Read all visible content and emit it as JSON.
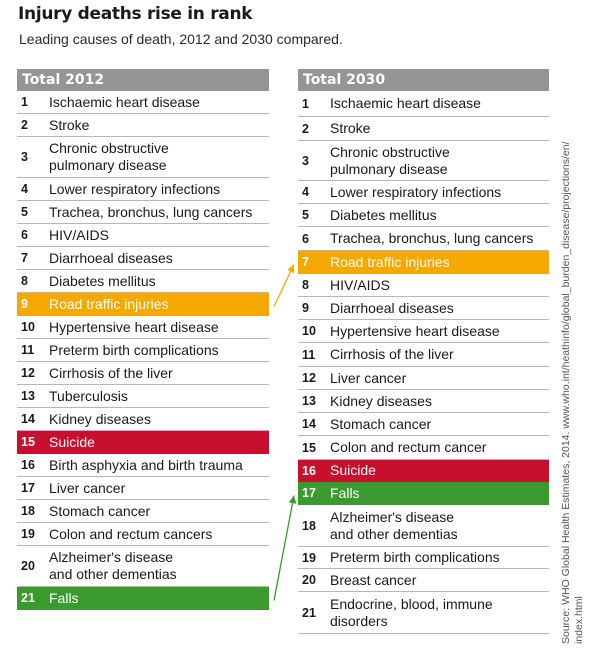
{
  "title": "Injury deaths rise in rank",
  "subtitle": "Leading causes of death, 2012 and 2030 compared.",
  "colors": {
    "header": "#959595",
    "road_traffic": "#f5a800",
    "suicide": "#c8102e",
    "falls": "#3a9a2e"
  },
  "source": {
    "line1": "Source:  WHO Global Health Estimates, 2014. www.who.int/heathinfo/global_burden_disease/projections/en/",
    "line2": "index.html"
  },
  "chart_data": {
    "type": "table",
    "tables": [
      {
        "header": "Total 2012",
        "rows": [
          {
            "rank": "1",
            "label": "Ischaemic heart disease"
          },
          {
            "rank": "2",
            "label": "Stroke"
          },
          {
            "rank": "3",
            "label": "Chronic obstructive pulmonary disease",
            "lines": [
              "Chronic obstructive",
              "pulmonary disease"
            ]
          },
          {
            "rank": "4",
            "label": "Lower respiratory infections"
          },
          {
            "rank": "5",
            "label": "Trachea, bronchus, lung cancers"
          },
          {
            "rank": "6",
            "label": "HIV/AIDS"
          },
          {
            "rank": "7",
            "label": "Diarrhoeal diseases"
          },
          {
            "rank": "8",
            "label": "Diabetes mellitus"
          },
          {
            "rank": "9",
            "label": "Road traffic injuries",
            "highlight": "road_traffic"
          },
          {
            "rank": "10",
            "label": "Hypertensive heart disease"
          },
          {
            "rank": "11",
            "label": "Preterm birth complications"
          },
          {
            "rank": "12",
            "label": "Cirrhosis of the liver"
          },
          {
            "rank": "13",
            "label": "Tuberculosis"
          },
          {
            "rank": "14",
            "label": "Kidney diseases"
          },
          {
            "rank": "15",
            "label": "Suicide",
            "highlight": "suicide"
          },
          {
            "rank": "16",
            "label": "Birth asphyxia and birth trauma"
          },
          {
            "rank": "17",
            "label": "Liver cancer"
          },
          {
            "rank": "18",
            "label": "Stomach cancer"
          },
          {
            "rank": "19",
            "label": "Colon and rectum cancers"
          },
          {
            "rank": "20",
            "label": "Alzheimer's disease and other dementias",
            "lines": [
              "Alzheimer's disease",
              "and other dementias"
            ]
          },
          {
            "rank": "21",
            "label": "Falls",
            "highlight": "falls"
          }
        ]
      },
      {
        "header": "Total 2030",
        "rows": [
          {
            "rank": "1",
            "label": "Ischaemic heart disease"
          },
          {
            "rank": "2",
            "label": "Stroke"
          },
          {
            "rank": "3",
            "label": "Chronic obstructive pulmonary disease",
            "lines": [
              "Chronic obstructive",
              "pulmonary disease"
            ]
          },
          {
            "rank": "4",
            "label": "Lower respiratory infections"
          },
          {
            "rank": "5",
            "label": "Diabetes mellitus"
          },
          {
            "rank": "6",
            "label": "Trachea, bronchus, lung cancers"
          },
          {
            "rank": "7",
            "label": "Road traffic injuries",
            "highlight": "road_traffic"
          },
          {
            "rank": "8",
            "label": "HIV/AIDS"
          },
          {
            "rank": "9",
            "label": "Diarrhoeal diseases"
          },
          {
            "rank": "10",
            "label": "Hypertensive heart disease"
          },
          {
            "rank": "11",
            "label": "Cirrhosis of the liver"
          },
          {
            "rank": "12",
            "label": "Liver cancer"
          },
          {
            "rank": "13",
            "label": "Kidney diseases"
          },
          {
            "rank": "14",
            "label": "Stomach cancer"
          },
          {
            "rank": "15",
            "label": "Colon and rectum cancer"
          },
          {
            "rank": "16",
            "label": "Suicide",
            "highlight": "suicide"
          },
          {
            "rank": "17",
            "label": "Falls",
            "highlight": "falls"
          },
          {
            "rank": "18",
            "label": "Alzheimer's disease and other dementias",
            "lines": [
              "Alzheimer's disease",
              "and other dementias"
            ]
          },
          {
            "rank": "19",
            "label": "Preterm birth complications"
          },
          {
            "rank": "20",
            "label": "Breast cancer"
          },
          {
            "rank": "21",
            "label": "Endocrine, blood, immune disorders",
            "lines": [
              "Endocrine, blood, immune",
              "disorders"
            ]
          }
        ]
      }
    ],
    "arrows": [
      {
        "from": "Total 2012 #9",
        "to": "Total 2030 #7",
        "color_key": "road_traffic"
      },
      {
        "from": "Total 2012 #21",
        "to": "Total 2030 #17",
        "color_key": "falls"
      }
    ]
  }
}
